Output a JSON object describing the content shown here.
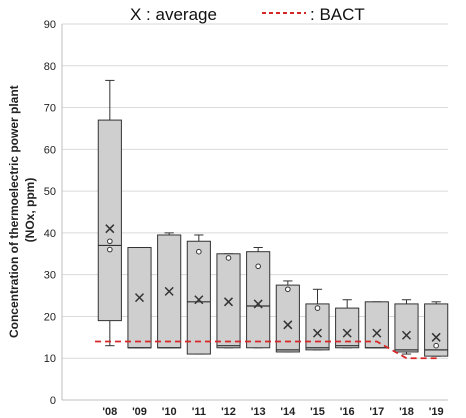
{
  "legend": {
    "average_label": "X : average",
    "bact_label": ": BACT"
  },
  "colors": {
    "box_fill": "#cfcfcf",
    "box_stroke": "#333333",
    "bact_line": "#d62728",
    "grid": "#d9d9d9"
  },
  "chart_data": {
    "type": "box",
    "ylabel_line1": "Concentration of thermoelectric power plant",
    "ylabel_line2": "(NOx, ppm)",
    "ylim": [
      0,
      90
    ],
    "ytick_step": 10,
    "grid": true,
    "legend_position": "top",
    "categories": [
      "'08",
      "'09",
      "'10",
      "'11",
      "'12",
      "'13",
      "'14",
      "'15",
      "'16",
      "'17",
      "'18",
      "'19"
    ],
    "boxes": [
      {
        "min": 13,
        "q1": 19,
        "median": 37,
        "q3": 67,
        "max": 76.5,
        "mean": 41,
        "outliers": [
          38,
          36
        ]
      },
      {
        "min": 12.5,
        "q1": 12.5,
        "median": 12.5,
        "q3": 36.5,
        "max": 36.5,
        "mean": 24.5,
        "outliers": []
      },
      {
        "min": 12.5,
        "q1": 12.5,
        "median": 12.5,
        "q3": 39.5,
        "max": 40,
        "mean": 26,
        "outliers": []
      },
      {
        "min": 11,
        "q1": 11,
        "median": 23.5,
        "q3": 38,
        "max": 39.5,
        "mean": 24,
        "outliers": [
          35.5
        ]
      },
      {
        "min": 12.5,
        "q1": 12.5,
        "median": 13,
        "q3": 35,
        "max": 35,
        "mean": 23.5,
        "outliers": [
          34
        ]
      },
      {
        "min": 12.5,
        "q1": 12.5,
        "median": 22.5,
        "q3": 35.5,
        "max": 36.5,
        "mean": 23,
        "outliers": [
          32
        ]
      },
      {
        "min": 11.5,
        "q1": 11.5,
        "median": 12,
        "q3": 27.5,
        "max": 28.5,
        "mean": 18,
        "outliers": [
          26.5
        ]
      },
      {
        "min": 12,
        "q1": 12,
        "median": 12.5,
        "q3": 23,
        "max": 26.5,
        "mean": 16,
        "outliers": [
          22
        ]
      },
      {
        "min": 12.5,
        "q1": 12.5,
        "median": 13,
        "q3": 22,
        "max": 24,
        "mean": 16,
        "outliers": []
      },
      {
        "min": 12.5,
        "q1": 12.5,
        "median": 12.5,
        "q3": 23.5,
        "max": 23.5,
        "mean": 16,
        "outliers": []
      },
      {
        "min": 11,
        "q1": 11.5,
        "median": 12,
        "q3": 23,
        "max": 24,
        "mean": 15.5,
        "outliers": []
      },
      {
        "min": 10.5,
        "q1": 10.5,
        "median": 12,
        "q3": 23,
        "max": 23.5,
        "mean": 15,
        "outliers": [
          13
        ]
      }
    ],
    "bact": [
      14,
      14,
      14,
      14,
      14,
      14,
      14,
      14,
      14,
      14,
      10,
      10
    ]
  }
}
